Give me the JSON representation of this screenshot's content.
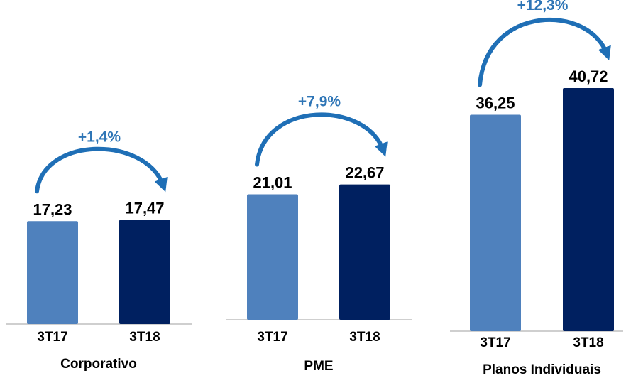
{
  "colors": {
    "bar_3T17": "#4f81bd",
    "bar_3T18": "#002060",
    "baseline": "#bfbfbf",
    "arrow": "#1f6fb6",
    "change_text": "#2e75b6"
  },
  "chart_data": [
    {
      "type": "bar",
      "group_label": "Corporativo",
      "categories": [
        "3T17",
        "3T18"
      ],
      "values": [
        17.23,
        17.47
      ],
      "value_labels": [
        "17,23",
        "17,47"
      ],
      "change_label": "+1,4%",
      "ylim": [
        0,
        44
      ]
    },
    {
      "type": "bar",
      "group_label": "PME",
      "categories": [
        "3T17",
        "3T18"
      ],
      "values": [
        21.01,
        22.67
      ],
      "value_labels": [
        "21,01",
        "22,67"
      ],
      "change_label": "+7,9%",
      "ylim": [
        0,
        44
      ]
    },
    {
      "type": "bar",
      "group_label": "Planos Individuais",
      "categories": [
        "3T17",
        "3T18"
      ],
      "values": [
        36.25,
        40.72
      ],
      "value_labels": [
        "36,25",
        "40,72"
      ],
      "change_label": "+12,3%",
      "ylim": [
        0,
        44
      ]
    }
  ]
}
